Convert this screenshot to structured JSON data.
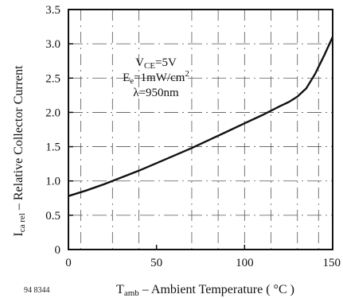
{
  "chart_data": {
    "type": "line",
    "ylim": [
      0,
      3.5
    ],
    "xlim": [
      0,
      150
    ],
    "x_ticks": [
      "0",
      "50",
      "100",
      "150"
    ],
    "y_ticks": [
      "0",
      "0.5",
      "1.0",
      "1.5",
      "2.0",
      "2.5",
      "3.0",
      "3.5"
    ],
    "grid": true,
    "xlabel": {
      "main": "T",
      "sub": "amb",
      "rest": " – Ambient Temperature ( °C )"
    },
    "ylabel": {
      "main": "I",
      "sub": "ca rel",
      "rest": " – Relative Collector Current"
    },
    "annotations": [
      {
        "main": "V",
        "sub": "CE",
        "rest": "=5V"
      },
      {
        "main": "E",
        "sub": "e",
        "rest": "=1mW/cm",
        "sup": "2"
      },
      {
        "main": "λ=950nm",
        "sub": "",
        "rest": ""
      }
    ],
    "figure_code": "94 8344",
    "series": [
      {
        "x": [
          0,
          10,
          20,
          30,
          40,
          50,
          60,
          70,
          80,
          90,
          100,
          110,
          120,
          125,
          130,
          135,
          140,
          145,
          150
        ],
        "values": [
          0.78,
          0.86,
          0.95,
          1.05,
          1.15,
          1.26,
          1.37,
          1.48,
          1.6,
          1.72,
          1.84,
          1.96,
          2.09,
          2.15,
          2.23,
          2.35,
          2.56,
          2.82,
          3.1
        ]
      }
    ]
  }
}
